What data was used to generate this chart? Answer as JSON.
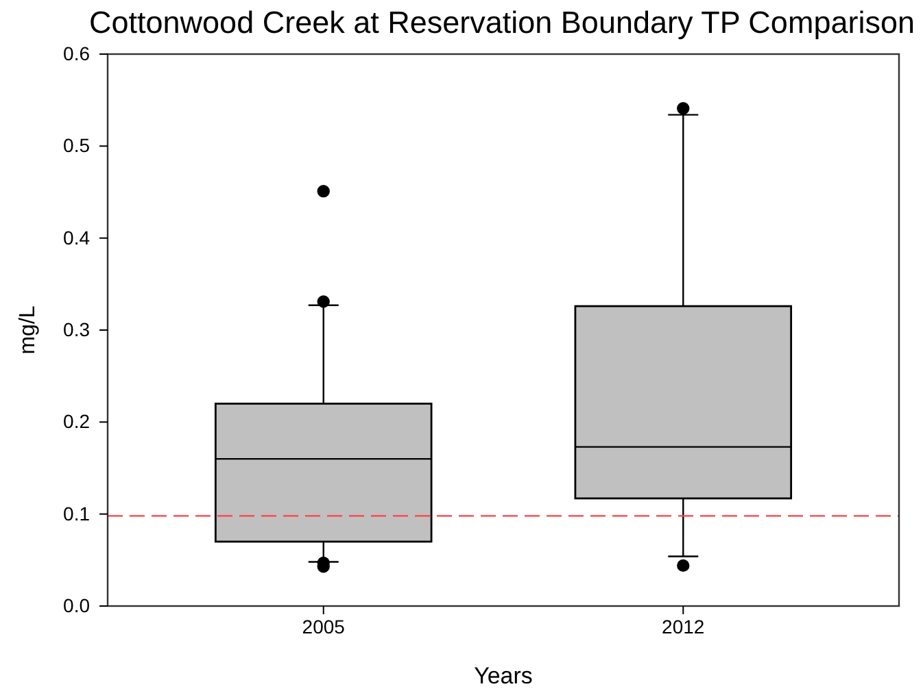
{
  "chart_data": {
    "type": "box",
    "title": "Cottonwood Creek at Reservation Boundary TP Comparison",
    "xlabel": "Years",
    "ylabel": "mg/L",
    "categories": [
      "2005",
      "2012"
    ],
    "color": "#c0c0c0",
    "marker": "circle",
    "boxes": [
      {
        "low": 0.048,
        "q1": 0.07,
        "median": 0.16,
        "q3": 0.22,
        "high": 0.327,
        "outliers": [
          0.451,
          0.331,
          0.047,
          0.043
        ]
      },
      {
        "low": 0.054,
        "q1": 0.117,
        "median": 0.173,
        "q3": 0.326,
        "high": 0.534,
        "outliers": [
          0.541,
          0.044
        ]
      }
    ],
    "ylim": [
      0,
      0.6
    ],
    "yticks": [
      {
        "value": 0,
        "label": "0.0"
      },
      0.1,
      0.2,
      0.3,
      0.4,
      0.5,
      0.6
    ],
    "ref_lines": [
      {
        "axis": "y",
        "value": 0.098,
        "color": "#ff4040",
        "line_style": "dashed"
      }
    ]
  }
}
